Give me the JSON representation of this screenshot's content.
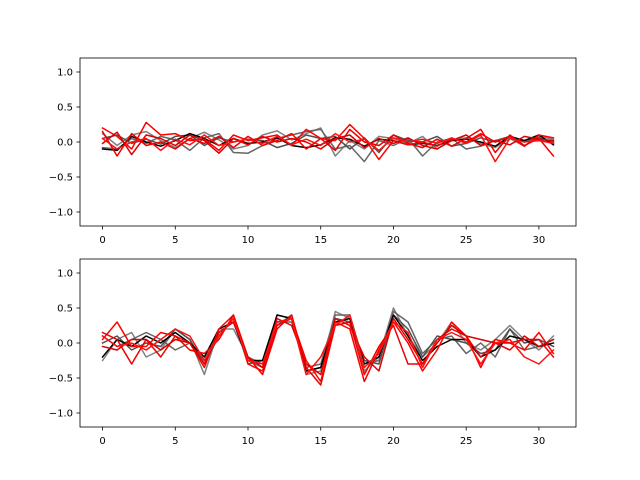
{
  "chart_data": [
    {
      "type": "line",
      "title": "",
      "xlabel": "",
      "ylabel": "",
      "xlim": [
        -1.55,
        32.55
      ],
      "ylim": [
        -1.2,
        1.2
      ],
      "xticks": [
        0,
        5,
        10,
        15,
        20,
        25,
        30
      ],
      "yticks": [
        -1.0,
        -0.5,
        0.0,
        0.5,
        1.0
      ],
      "ytick_labels": [
        "−1.0",
        "−0.5",
        "0.0",
        "0.5",
        "1.0"
      ],
      "grid": false,
      "x": [
        0,
        1,
        2,
        3,
        4,
        5,
        6,
        7,
        8,
        9,
        10,
        11,
        12,
        13,
        14,
        15,
        16,
        17,
        18,
        19,
        20,
        21,
        22,
        23,
        24,
        25,
        26,
        27,
        28,
        29,
        30,
        31
      ],
      "series": [
        {
          "color": "#808080",
          "values": [
            0.12,
            -0.05,
            0.1,
            0.15,
            0.02,
            -0.08,
            0.05,
            0.14,
            0.03,
            -0.1,
            -0.05,
            0.1,
            0.16,
            0.03,
            0.12,
            0.2,
            -0.2,
            0.02,
            -0.1,
            0.08,
            0.05,
            -0.02,
            0.08,
            -0.1,
            0.03,
            0.06,
            -0.02,
            -0.08,
            0.05,
            -0.06,
            0.08,
            0.04
          ]
        },
        {
          "color": "#666666",
          "values": [
            -0.08,
            -0.1,
            0.05,
            -0.02,
            0.08,
            0.03,
            -0.12,
            0.06,
            0.12,
            -0.15,
            -0.16,
            -0.05,
            0.05,
            0.1,
            0.15,
            0.18,
            -0.1,
            -0.05,
            -0.28,
            0.02,
            -0.05,
            0.05,
            -0.2,
            0.0,
            0.05,
            -0.1,
            -0.06,
            0.02,
            0.08,
            0.0,
            0.04,
            -0.02
          ]
        },
        {
          "color": "#505050",
          "values": [
            0.05,
            0.1,
            -0.02,
            0.04,
            -0.03,
            0.08,
            0.1,
            -0.05,
            0.06,
            0.0,
            0.04,
            0.02,
            -0.08,
            -0.02,
            0.1,
            0.05,
            0.08,
            -0.1,
            0.06,
            -0.15,
            0.1,
            0.02,
            0.0,
            0.08,
            -0.06,
            -0.02,
            0.06,
            0.0,
            0.08,
            0.02,
            0.06,
            0.0
          ]
        },
        {
          "color": "#000000",
          "values": [
            -0.1,
            -0.12,
            0.08,
            0.0,
            -0.06,
            0.02,
            0.12,
            0.05,
            -0.05,
            0.05,
            -0.02,
            0.0,
            0.06,
            -0.05,
            -0.08,
            -0.04,
            0.06,
            0.04,
            -0.06,
            0.04,
            0.02,
            -0.04,
            -0.02,
            -0.05,
            0.02,
            0.04,
            0.0,
            -0.06,
            0.08,
            0.02,
            0.1,
            -0.04
          ]
        },
        {
          "color": "#ff0000",
          "values": [
            0.2,
            0.08,
            -0.1,
            0.28,
            0.1,
            0.12,
            0.02,
            0.04,
            -0.12,
            0.1,
            0.02,
            0.06,
            0.1,
            -0.05,
            0.18,
            0.05,
            0.02,
            0.25,
            0.05,
            -0.25,
            0.02,
            -0.04,
            0.0,
            -0.06,
            0.05,
            0.0,
            0.12,
            0.0,
            0.08,
            -0.06,
            0.1,
            0.06
          ]
        },
        {
          "color": "#ee0000",
          "values": [
            0.15,
            -0.2,
            0.12,
            -0.05,
            0.0,
            -0.1,
            0.05,
            -0.02,
            0.08,
            -0.08,
            0.08,
            -0.05,
            0.02,
            0.12,
            -0.1,
            0.05,
            -0.12,
            0.18,
            0.0,
            -0.05,
            0.1,
            -0.02,
            -0.08,
            0.04,
            -0.06,
            0.05,
            0.18,
            -0.15,
            0.1,
            -0.05,
            0.05,
            -0.2
          ]
        },
        {
          "color": "#dd0000",
          "values": [
            -0.02,
            0.14,
            -0.18,
            0.1,
            0.05,
            -0.05,
            0.1,
            0.02,
            -0.16,
            0.05,
            -0.04,
            0.08,
            0.0,
            0.05,
            0.0,
            -0.1,
            0.05,
            0.1,
            -0.08,
            0.05,
            -0.02,
            0.06,
            -0.05,
            -0.1,
            0.02,
            0.1,
            -0.05,
            0.02,
            -0.04,
            0.08,
            0.04,
            0.02
          ]
        },
        {
          "color": "#ff1010",
          "values": [
            0.05,
            -0.1,
            0.0,
            0.05,
            -0.12,
            0.04,
            -0.04,
            0.1,
            -0.05,
            0.0,
            0.04,
            -0.02,
            0.08,
            -0.04,
            0.04,
            -0.05,
            0.12,
            0.0,
            0.04,
            -0.12,
            0.06,
            0.0,
            0.04,
            -0.02,
            0.06,
            -0.02,
            0.1,
            -0.28,
            0.05,
            0.0,
            0.02,
            -0.02
          ]
        }
      ]
    },
    {
      "type": "line",
      "title": "",
      "xlabel": "",
      "ylabel": "",
      "xlim": [
        -1.55,
        32.55
      ],
      "ylim": [
        -1.2,
        1.2
      ],
      "xticks": [
        0,
        5,
        10,
        15,
        20,
        25,
        30
      ],
      "yticks": [
        -1.0,
        -0.5,
        0.0,
        0.5,
        1.0
      ],
      "ytick_labels": [
        "−1.0",
        "−0.5",
        "0.0",
        "0.5",
        "1.0"
      ],
      "grid": false,
      "x": [
        0,
        1,
        2,
        3,
        4,
        5,
        6,
        7,
        8,
        9,
        10,
        11,
        12,
        13,
        14,
        15,
        16,
        17,
        18,
        19,
        20,
        21,
        22,
        23,
        24,
        25,
        26,
        27,
        28,
        29,
        30,
        31
      ],
      "series": [
        {
          "color": "#808080",
          "values": [
            -0.25,
            0.05,
            0.15,
            -0.2,
            -0.1,
            0.2,
            0.05,
            -0.45,
            0.2,
            0.2,
            -0.2,
            -0.3,
            0.4,
            0.35,
            -0.45,
            -0.4,
            0.45,
            0.35,
            -0.4,
            -0.2,
            0.5,
            0.1,
            -0.2,
            0.0,
            0.3,
            0.0,
            -0.1,
            0.05,
            0.25,
            0.05,
            -0.1,
            0.1
          ]
        },
        {
          "color": "#666666",
          "values": [
            0.1,
            -0.05,
            0.05,
            0.15,
            0.05,
            -0.1,
            0.0,
            -0.25,
            0.15,
            0.3,
            -0.25,
            -0.35,
            0.3,
            0.3,
            -0.35,
            -0.3,
            0.4,
            0.4,
            -0.3,
            -0.25,
            0.45,
            0.3,
            -0.15,
            0.05,
            0.1,
            -0.15,
            0.0,
            -0.2,
            0.2,
            -0.1,
            -0.05,
            0.05
          ]
        },
        {
          "color": "#505050",
          "values": [
            0.0,
            0.1,
            -0.1,
            0.0,
            -0.05,
            0.2,
            0.05,
            -0.3,
            0.1,
            0.35,
            -0.3,
            -0.25,
            0.25,
            0.4,
            -0.4,
            -0.35,
            0.35,
            0.3,
            -0.25,
            -0.3,
            0.4,
            0.2,
            -0.2,
            0.1,
            0.05,
            0.0,
            -0.15,
            -0.1,
            0.2,
            0.0,
            0.05,
            -0.05
          ]
        },
        {
          "color": "#000000",
          "values": [
            -0.2,
            0.05,
            -0.05,
            0.1,
            0.0,
            0.15,
            0.0,
            -0.2,
            0.2,
            0.3,
            -0.25,
            -0.25,
            0.4,
            0.35,
            -0.4,
            -0.35,
            0.3,
            0.35,
            -0.3,
            -0.2,
            0.4,
            0.1,
            -0.25,
            -0.05,
            0.05,
            0.05,
            -0.2,
            -0.1,
            0.1,
            0.05,
            -0.05,
            0.0
          ]
        },
        {
          "color": "#ff0000",
          "values": [
            0.05,
            0.3,
            -0.05,
            -0.05,
            0.15,
            0.1,
            0.0,
            -0.35,
            0.2,
            0.4,
            -0.3,
            -0.4,
            0.25,
            0.35,
            -0.25,
            -0.55,
            0.3,
            0.2,
            -0.55,
            -0.1,
            0.3,
            0.0,
            -0.4,
            -0.1,
            0.3,
            0.1,
            -0.35,
            0.05,
            0.0,
            -0.1,
            0.15,
            -0.15
          ]
        },
        {
          "color": "#ee0000",
          "values": [
            0.15,
            0.05,
            -0.3,
            0.05,
            -0.2,
            0.1,
            -0.1,
            -0.15,
            0.05,
            0.4,
            -0.2,
            -0.45,
            0.2,
            0.4,
            -0.35,
            -0.6,
            0.25,
            0.3,
            -0.45,
            -0.05,
            0.25,
            -0.3,
            -0.3,
            0.05,
            0.2,
            0.1,
            -0.2,
            0.0,
            0.0,
            0.05,
            0.05,
            -0.2
          ]
        },
        {
          "color": "#dd0000",
          "values": [
            -0.05,
            -0.1,
            0.05,
            0.05,
            -0.1,
            0.05,
            0.0,
            -0.3,
            0.15,
            0.3,
            -0.2,
            -0.35,
            0.35,
            0.25,
            -0.3,
            -0.45,
            0.35,
            0.25,
            -0.2,
            -0.4,
            0.35,
            0.05,
            -0.3,
            0.0,
            0.25,
            0.1,
            0.05,
            0.0,
            -0.1,
            0.1,
            -0.05,
            0.05
          ]
        },
        {
          "color": "#ff1010",
          "values": [
            0.1,
            -0.05,
            0.0,
            -0.1,
            0.05,
            0.2,
            0.1,
            -0.25,
            0.1,
            0.35,
            -0.25,
            -0.3,
            0.3,
            0.35,
            -0.45,
            -0.2,
            0.25,
            0.4,
            -0.35,
            -0.15,
            0.3,
            0.15,
            -0.35,
            0.05,
            0.15,
            0.05,
            -0.3,
            0.0,
            0.05,
            -0.2,
            -0.3,
            -0.1
          ]
        }
      ]
    }
  ]
}
